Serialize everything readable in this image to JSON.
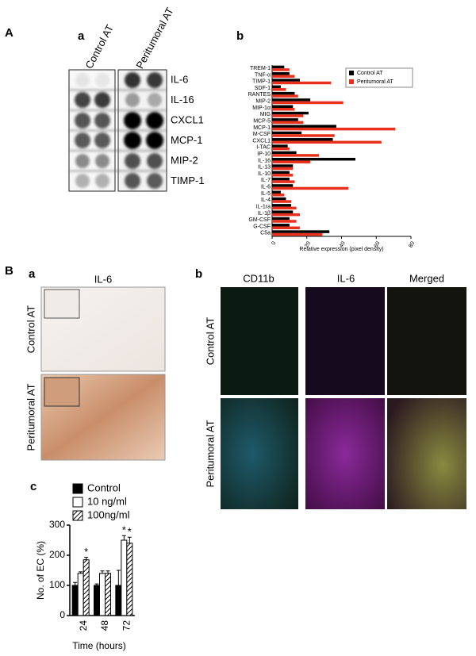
{
  "labels": {
    "A": "A",
    "A_a": "a",
    "A_b": "b",
    "B": "B",
    "B_a": "a",
    "B_b": "b",
    "B_c": "c"
  },
  "dot_blot": {
    "columns": [
      "Control AT",
      "Peritumoral AT"
    ],
    "rows": [
      "IL-6",
      "IL-16",
      "CXCL1",
      "MCP-1",
      "MIP-2",
      "TIMP-1"
    ]
  },
  "ihc": {
    "title": "IL-6",
    "rows": [
      "Control AT",
      "Peritumoral AT"
    ]
  },
  "immunofluorescence": {
    "columns": [
      "CD11b",
      "IL-6",
      "Merged"
    ],
    "rows": [
      "Control AT",
      "Peritumoral AT"
    ]
  },
  "chart_data": [
    {
      "type": "hbar",
      "x_label": "Relative expression (pixel density)",
      "categories": [
        "TREM-1",
        "TNF-α",
        "TIMP-1",
        "SDF-1",
        "RANTES",
        "MIP-2",
        "MIP-1α",
        "MIG",
        "MCP-5",
        "MCP-1",
        "M-CSF",
        "CXCL1",
        "I-TAC",
        "IP-10",
        "IL-16",
        "IL-13",
        "IL-10",
        "IL-7",
        "IL-6",
        "IL-5",
        "IL-4",
        "IL-1ra",
        "IL-1β",
        "GM-CSF",
        "G-CSF",
        "C5a"
      ],
      "series": [
        {
          "name": "Control AT",
          "color": "#000000",
          "values": [
            7,
            10,
            16,
            5,
            13,
            22,
            12,
            21,
            15,
            37,
            17,
            35,
            9,
            14,
            48,
            12,
            10,
            10,
            12,
            5,
            8,
            11,
            12,
            10,
            10,
            33
          ]
        },
        {
          "name": "Peritumoral AT",
          "color": "#e8301c",
          "values": [
            10,
            13,
            34,
            8,
            15,
            41,
            13,
            18,
            18,
            71,
            36,
            63,
            10,
            27,
            22,
            12,
            12,
            13,
            44,
            7,
            11,
            14,
            16,
            14,
            16,
            29
          ]
        }
      ],
      "xlim": [
        0,
        80
      ],
      "xticks": [
        0,
        20,
        40,
        60,
        80
      ],
      "legend": "top-right"
    },
    {
      "type": "bar",
      "x_label": "Time (hours)",
      "y_label": "No. of EC (%)",
      "categories": [
        "24",
        "48",
        "72"
      ],
      "series": [
        {
          "name": "Control",
          "color": "#000000",
          "values": [
            100,
            100,
            100
          ],
          "errors": [
            10,
            5,
            50
          ]
        },
        {
          "name": "10 ng/ml",
          "color": "#ffffff",
          "values": [
            140,
            140,
            250
          ],
          "errors": [
            5,
            8,
            15
          ],
          "significance": [
            null,
            null,
            "*"
          ]
        },
        {
          "name": "100ng/ml",
          "color": "hatch",
          "values": [
            185,
            140,
            240
          ],
          "errors": [
            8,
            8,
            20
          ],
          "significance": [
            "*",
            null,
            "*"
          ]
        }
      ],
      "ylim": [
        0,
        300
      ],
      "yticks": [
        0,
        100,
        200,
        300
      ],
      "legend": "top-left"
    }
  ]
}
